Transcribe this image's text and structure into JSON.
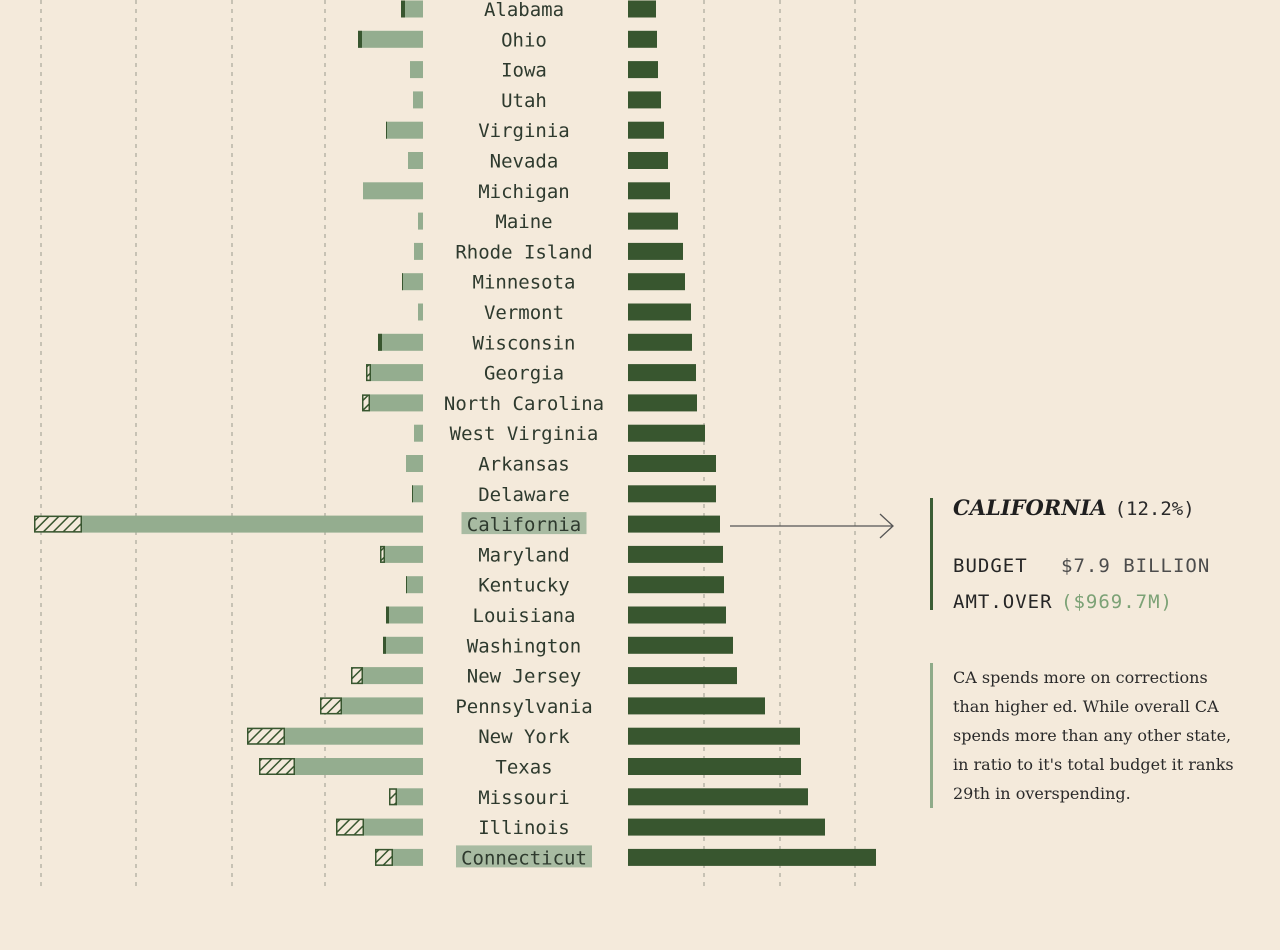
{
  "chart_data": {
    "type": "bar",
    "categories": [
      "Alabama",
      "Ohio",
      "Iowa",
      "Utah",
      "Virginia",
      "Nevada",
      "Michigan",
      "Maine",
      "Rhode Island",
      "Minnesota",
      "Vermont",
      "Wisconsin",
      "Georgia",
      "North Carolina",
      "West Virginia",
      "Arkansas",
      "Delaware",
      "California",
      "Maryland",
      "Kentucky",
      "Louisiana",
      "Washington",
      "New Jersey",
      "Pennsylvania",
      "New York",
      "Texas",
      "Missouri",
      "Illinois",
      "Connecticut"
    ],
    "series": [
      {
        "values": [
          22,
          65,
          13,
          10,
          37,
          15,
          60,
          5,
          9,
          21,
          5,
          45,
          57,
          61,
          9,
          17,
          11,
          389,
          43,
          17,
          37,
          40,
          72,
          103,
          176,
          164,
          34,
          87,
          48
        ]
      },
      {
        "values": [
          4,
          4,
          0,
          0,
          1,
          0,
          0,
          0,
          0,
          1,
          0,
          4,
          5,
          8,
          0,
          0,
          1,
          48,
          5,
          1,
          3,
          3,
          12,
          22,
          38,
          36,
          8,
          28,
          18
        ]
      },
      {
        "values": [
          28,
          29,
          30,
          33,
          36,
          40,
          42,
          50,
          55,
          57,
          63,
          64,
          68,
          69,
          77,
          88,
          88,
          92,
          95,
          96,
          98,
          105,
          109,
          137,
          172,
          173,
          180,
          197,
          248
        ]
      }
    ],
    "highlighted": [
      "California",
      "Connecticut"
    ],
    "colors": {
      "left_bar": "#94ad8f",
      "right_bar": "#38562f",
      "overspend": "#38562f",
      "grid": "#9a9a8e",
      "highlight": "#a8bba2"
    }
  },
  "callout": {
    "state": "CALIFORNIA",
    "percent": "(12.2%)",
    "budget_label": "BUDGET",
    "budget_value": "$7.9 BILLION",
    "over_label": "AMT.OVER",
    "over_value": "($969.7M)"
  },
  "note": "CA spends more on corrections than higher ed. While overall CA spends more than any other state, in ratio to it's total budget it ranks 29th in overspending."
}
